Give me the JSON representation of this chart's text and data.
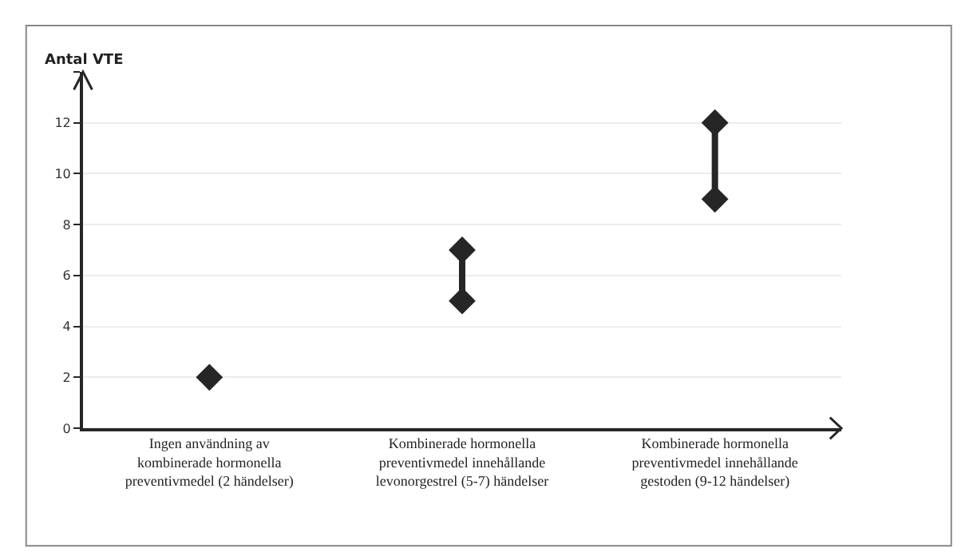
{
  "chart_data": {
    "type": "line",
    "ylabel": "Antal VTE",
    "categories": [
      "Ingen användning av\nkombinerade hormonella\npreventivmedel (2 händelser)",
      "Kombinerade hormonella\npreventivmedel innehållande\nlevonorgestrel (5-7) händelser",
      "Kombinerade hormonella\npreventivmedel innehållande\ngestoden (9-12 händelser)"
    ],
    "series": [
      {
        "color": "#262626",
        "x": [
          "Ingen användning av\nkombinerade hormonella\npreventivmedel (2 händelser)",
          "Ingen användning av\nkombinerade hormonella\npreventivmedel (2 händelser)",
          "Kombinerade hormonella\npreventivmedel innehållande\nlevonorgestrel (5-7) händelser",
          "Kombinerade hormonella\npreventivmedel innehållande\nlevonorgestrel (5-7) händelser",
          "Kombinerade hormonella\npreventivmedel innehållande\nlevonorgestrel (5-7) händelser",
          "Kombinerade hormonella\npreventivmedel innehållande\ngestoden (9-12 händelser)",
          "Kombinerade hormonella\npreventivmedel innehållande\ngestoden (9-12 händelser)"
        ],
        "values": [
          2,
          null,
          5,
          7,
          null,
          9,
          12
        ]
      }
    ],
    "marker": "diamond",
    "ylim": [
      0,
      14
    ],
    "yticks": [
      0,
      2,
      4,
      6,
      8,
      10,
      12,
      {
        "value": 14,
        "label": null
      }
    ],
    "grid": "y"
  }
}
